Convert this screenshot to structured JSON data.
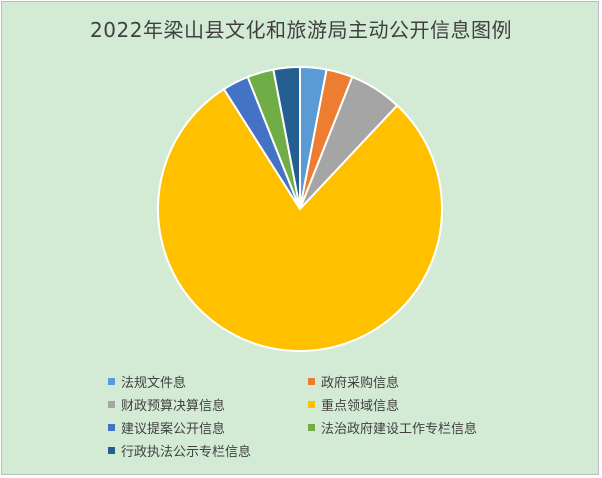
{
  "chart_data": {
    "type": "pie",
    "title": "2022年梁山县文化和旅游局主动公开信息图例",
    "legend_position": "bottom",
    "categories": [
      "法规文件息",
      "政府采购信息",
      "财政预算决算信息",
      "重点领域信息",
      "建议提案公开信息",
      "法治政府建设工作专栏信息",
      "行政执法公示专栏信息"
    ],
    "values": [
      3,
      3,
      6,
      79,
      3,
      3,
      3
    ],
    "colors": [
      "#5b9bd5",
      "#ed7d31",
      "#a5a5a5",
      "#ffc000",
      "#4472c4",
      "#70ad47",
      "#255e91"
    ]
  }
}
